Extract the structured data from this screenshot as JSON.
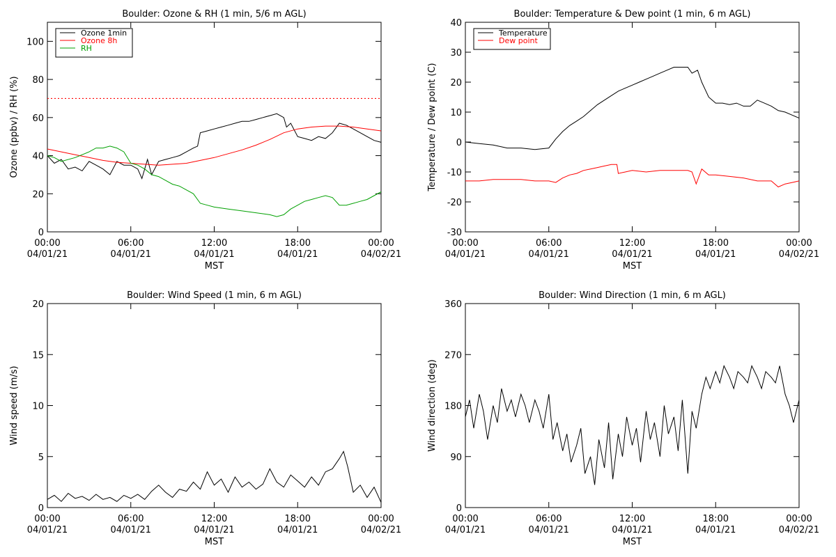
{
  "colors": {
    "black": "#000000",
    "red": "#ff0000",
    "green": "#00a000",
    "background": "#ffffff"
  },
  "chart_data": [
    {
      "id": "ozone-rh",
      "type": "line",
      "title": "Boulder: Ozone & RH (1 min, 5/6 m AGL)",
      "ylabel": "Ozone (ppbv) / RH (%)",
      "xlabel": "MST",
      "xlim": [
        0,
        24
      ],
      "ylim": [
        0,
        110
      ],
      "yticks": [
        0,
        20,
        40,
        60,
        80,
        100
      ],
      "xticks": [
        0,
        6,
        12,
        18,
        24
      ],
      "xtick_labels": [
        [
          "00:00",
          "04/01/21"
        ],
        [
          "06:00",
          "04/01/21"
        ],
        [
          "12:00",
          "04/01/21"
        ],
        [
          "18:00",
          "04/01/21"
        ],
        [
          "00:00",
          "04/02/21"
        ]
      ],
      "legend_position": "top-left",
      "reference_lines": [
        {
          "y": 70,
          "color": "#ff0000",
          "style": "dotted"
        }
      ],
      "series": [
        {
          "name": "Ozone 1min",
          "color": "#000000",
          "x": [
            0,
            0.5,
            1,
            1.5,
            2,
            2.5,
            3,
            3.5,
            4,
            4.5,
            5,
            5.5,
            6,
            6.5,
            6.8,
            7,
            7.2,
            7.5,
            8,
            8.5,
            9,
            9.5,
            10,
            10.5,
            10.8,
            11,
            11.5,
            12,
            12.5,
            13,
            13.5,
            14,
            14.5,
            15,
            15.5,
            16,
            16.5,
            17,
            17.2,
            17.5,
            18,
            18.5,
            19,
            19.5,
            20,
            20.5,
            21,
            21.5,
            22,
            22.5,
            23,
            23.5,
            24
          ],
          "y": [
            40,
            36,
            38,
            33,
            34,
            32,
            37,
            35,
            33,
            30,
            37,
            35,
            35,
            33,
            28,
            33,
            38,
            30,
            37,
            38,
            39,
            40,
            42,
            44,
            45,
            52,
            53,
            54,
            55,
            56,
            57,
            58,
            58,
            59,
            60,
            61,
            62,
            60,
            55,
            57,
            50,
            49,
            48,
            50,
            49,
            52,
            57,
            56,
            54,
            52,
            50,
            48,
            47
          ]
        },
        {
          "name": "Ozone 8h",
          "color": "#ff0000",
          "x": [
            0,
            1,
            2,
            3,
            4,
            5,
            6,
            7,
            8,
            9,
            10,
            11,
            12,
            13,
            14,
            15,
            16,
            17,
            18,
            19,
            20,
            21,
            22,
            23,
            24
          ],
          "y": [
            43.5,
            42,
            40.5,
            39,
            37.5,
            36.5,
            36,
            35.5,
            35,
            35.5,
            36,
            37.5,
            39,
            41,
            43,
            45.5,
            48.5,
            52,
            54,
            55,
            55.5,
            55.5,
            55,
            54,
            53
          ]
        },
        {
          "name": "RH",
          "color": "#00a000",
          "x": [
            0,
            0.5,
            1,
            2,
            3,
            3.5,
            4,
            4.5,
            5,
            5.5,
            6,
            6.5,
            7,
            7.5,
            8,
            8.5,
            9,
            9.5,
            10,
            10.5,
            11,
            11.5,
            12,
            13,
            14,
            15,
            16,
            16.5,
            17,
            17.5,
            18,
            18.5,
            19,
            19.5,
            20,
            20.5,
            21,
            21.5,
            22,
            22.5,
            23,
            23.5,
            24
          ],
          "y": [
            40,
            39,
            37,
            39,
            42,
            44,
            44,
            45,
            44,
            42,
            36,
            35,
            33,
            30,
            29,
            27,
            25,
            24,
            22,
            20,
            15,
            14,
            13,
            12,
            11,
            10,
            9,
            8,
            9,
            12,
            14,
            16,
            17,
            18,
            19,
            18,
            14,
            14,
            15,
            16,
            17,
            19,
            21
          ]
        }
      ]
    },
    {
      "id": "temp-dewpoint",
      "type": "line",
      "title": "Boulder: Temperature & Dew point (1 min, 6 m AGL)",
      "ylabel": "Temperature / Dew point (C)",
      "xlabel": "MST",
      "xlim": [
        0,
        24
      ],
      "ylim": [
        -30,
        40
      ],
      "yticks": [
        -30,
        -20,
        -10,
        0,
        10,
        20,
        30,
        40
      ],
      "xticks": [
        0,
        6,
        12,
        18,
        24
      ],
      "xtick_labels": [
        [
          "00:00",
          "04/01/21"
        ],
        [
          "06:00",
          "04/01/21"
        ],
        [
          "12:00",
          "04/01/21"
        ],
        [
          "18:00",
          "04/01/21"
        ],
        [
          "00:00",
          "04/02/21"
        ]
      ],
      "legend_position": "top-left",
      "series": [
        {
          "name": "Temperature",
          "color": "#000000",
          "x": [
            0,
            1,
            2,
            3,
            4,
            5,
            6,
            6.5,
            7,
            7.5,
            8,
            8.5,
            9,
            9.5,
            10,
            10.5,
            11,
            11.5,
            12,
            12.5,
            13,
            13.5,
            14,
            14.5,
            15,
            15.5,
            16,
            16.3,
            16.7,
            17,
            17.5,
            18,
            18.5,
            19,
            19.5,
            20,
            20.5,
            21,
            21.5,
            22,
            22.5,
            23,
            23.5,
            24
          ],
          "y": [
            0,
            -0.5,
            -1,
            -2,
            -2,
            -2.5,
            -2,
            1,
            3.5,
            5.5,
            7,
            8.5,
            10.5,
            12.5,
            14,
            15.5,
            17,
            18,
            19,
            20,
            21,
            22,
            23,
            24,
            25,
            25,
            25,
            23,
            24,
            20,
            15,
            13,
            13,
            12.5,
            13,
            12,
            12,
            14,
            13,
            12,
            10.5,
            10,
            9,
            8
          ]
        },
        {
          "name": "Dew point",
          "color": "#ff0000",
          "x": [
            0,
            1,
            2,
            3,
            4,
            5,
            6,
            6.5,
            7,
            7.5,
            8,
            8.5,
            9,
            9.5,
            10,
            10.5,
            10.9,
            11,
            11.5,
            12,
            13,
            14,
            15,
            16,
            16.3,
            16.6,
            17,
            17.5,
            18,
            19,
            20,
            21,
            22,
            22.5,
            23,
            23.5,
            24
          ],
          "y": [
            -13,
            -13,
            -12.5,
            -12.5,
            -12.5,
            -13,
            -13,
            -13.5,
            -12,
            -11,
            -10.5,
            -9.5,
            -9,
            -8.5,
            -8,
            -7.5,
            -7.5,
            -10.5,
            -10,
            -9.5,
            -10,
            -9.5,
            -9.5,
            -9.5,
            -10,
            -14,
            -9,
            -11,
            -11,
            -11.5,
            -12,
            -13,
            -13,
            -15,
            -14,
            -13.5,
            -13
          ]
        }
      ]
    },
    {
      "id": "wind-speed",
      "type": "line",
      "title": "Boulder: Wind Speed (1 min, 6 m AGL)",
      "ylabel": "Wind speed (m/s)",
      "xlabel": "MST",
      "xlim": [
        0,
        24
      ],
      "ylim": [
        0,
        20
      ],
      "yticks": [
        0,
        5,
        10,
        15,
        20
      ],
      "xticks": [
        0,
        6,
        12,
        18,
        24
      ],
      "xtick_labels": [
        [
          "00:00",
          "04/01/21"
        ],
        [
          "06:00",
          "04/01/21"
        ],
        [
          "12:00",
          "04/01/21"
        ],
        [
          "18:00",
          "04/01/21"
        ],
        [
          "00:00",
          "04/02/21"
        ]
      ],
      "series": [
        {
          "name": "",
          "color": "#000000",
          "x": [
            0,
            0.5,
            1,
            1.5,
            2,
            2.5,
            3,
            3.5,
            4,
            4.5,
            5,
            5.5,
            6,
            6.5,
            7,
            7.5,
            8,
            8.5,
            9,
            9.5,
            10,
            10.5,
            11,
            11.5,
            12,
            12.5,
            13,
            13.5,
            14,
            14.5,
            15,
            15.5,
            16,
            16.5,
            17,
            17.5,
            18,
            18.5,
            19,
            19.5,
            20,
            20.5,
            21,
            21.3,
            21.6,
            22,
            22.5,
            23,
            23.5,
            24
          ],
          "y": [
            0.8,
            1.2,
            0.6,
            1.4,
            0.9,
            1.1,
            0.7,
            1.3,
            0.8,
            1.0,
            0.6,
            1.2,
            0.9,
            1.3,
            0.8,
            1.6,
            2.2,
            1.5,
            1.0,
            1.8,
            1.6,
            2.5,
            1.8,
            3.5,
            2.2,
            2.8,
            1.5,
            3.0,
            2.0,
            2.5,
            1.8,
            2.3,
            3.8,
            2.5,
            2.0,
            3.2,
            2.6,
            2.0,
            3.0,
            2.2,
            3.5,
            3.8,
            4.8,
            5.5,
            4.0,
            1.5,
            2.2,
            1.0,
            2.0,
            0.5
          ]
        }
      ]
    },
    {
      "id": "wind-direction",
      "type": "line",
      "title": "Boulder: Wind Direction (1 min, 6 m AGL)",
      "ylabel": "Wind direction (deg)",
      "xlabel": "MST",
      "xlim": [
        0,
        24
      ],
      "ylim": [
        0,
        360
      ],
      "yticks": [
        0,
        90,
        180,
        270,
        360
      ],
      "xticks": [
        0,
        6,
        12,
        18,
        24
      ],
      "xtick_labels": [
        [
          "00:00",
          "04/01/21"
        ],
        [
          "06:00",
          "04/01/21"
        ],
        [
          "12:00",
          "04/01/21"
        ],
        [
          "18:00",
          "04/01/21"
        ],
        [
          "00:00",
          "04/02/21"
        ]
      ],
      "series": [
        {
          "name": "",
          "color": "#000000",
          "x": [
            0,
            0.3,
            0.6,
            1,
            1.3,
            1.6,
            2,
            2.3,
            2.6,
            3,
            3.3,
            3.6,
            4,
            4.3,
            4.6,
            5,
            5.3,
            5.6,
            6,
            6.3,
            6.6,
            7,
            7.3,
            7.6,
            8,
            8.3,
            8.6,
            9,
            9.3,
            9.6,
            10,
            10.3,
            10.6,
            11,
            11.3,
            11.6,
            12,
            12.3,
            12.6,
            13,
            13.3,
            13.6,
            14,
            14.3,
            14.6,
            15,
            15.3,
            15.6,
            16,
            16.3,
            16.6,
            17,
            17.3,
            17.6,
            18,
            18.3,
            18.6,
            19,
            19.3,
            19.6,
            20,
            20.3,
            20.6,
            21,
            21.3,
            21.6,
            22,
            22.3,
            22.6,
            23,
            23.3,
            23.6,
            24
          ],
          "y": [
            160,
            190,
            140,
            200,
            170,
            120,
            180,
            150,
            210,
            170,
            190,
            160,
            200,
            180,
            150,
            190,
            170,
            140,
            200,
            120,
            150,
            100,
            130,
            80,
            110,
            140,
            60,
            90,
            40,
            120,
            70,
            150,
            50,
            130,
            90,
            160,
            110,
            140,
            80,
            170,
            120,
            150,
            90,
            180,
            130,
            160,
            100,
            190,
            60,
            170,
            140,
            200,
            230,
            210,
            240,
            220,
            250,
            230,
            210,
            240,
            230,
            220,
            250,
            230,
            210,
            240,
            230,
            220,
            250,
            200,
            180,
            150,
            190
          ]
        }
      ]
    }
  ]
}
